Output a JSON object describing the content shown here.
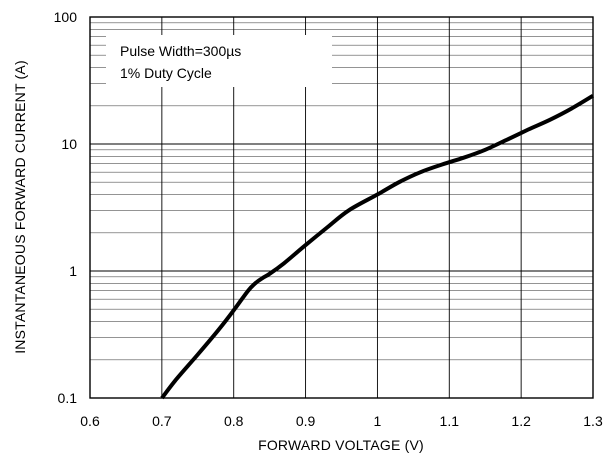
{
  "chart_data": {
    "type": "line",
    "xlabel": "FORWARD VOLTAGE (V)",
    "ylabel": "INSTANTANEOUS FORWARD CURRENT (A)",
    "xlim": [
      0.6,
      1.3
    ],
    "ylim": [
      0.1,
      100
    ],
    "yscale": "log",
    "grid": true,
    "x_ticks": [
      "0.6",
      "0.7",
      "0.8",
      "0.9",
      "1",
      "1.1",
      "1.2",
      "1.3"
    ],
    "y_ticks": [
      "0.1",
      "1",
      "10",
      "100"
    ],
    "annotations": [
      "Pulse Width=300µs",
      "1% Duty Cycle"
    ],
    "series": [
      {
        "color": "#000000",
        "x": [
          0.7,
          0.72,
          0.75,
          0.78,
          0.8,
          0.82,
          0.83,
          0.84,
          0.85,
          0.87,
          0.9,
          0.93,
          0.96,
          1.0,
          1.03,
          1.06,
          1.09,
          1.12,
          1.15,
          1.18,
          1.21,
          1.24,
          1.27,
          1.3
        ],
        "y": [
          0.1,
          0.14,
          0.22,
          0.35,
          0.49,
          0.7,
          0.8,
          0.88,
          0.95,
          1.15,
          1.6,
          2.2,
          3.0,
          4.0,
          5.0,
          6.0,
          6.9,
          7.8,
          9.0,
          10.8,
          13.0,
          15.5,
          19.0,
          24.0
        ]
      }
    ]
  }
}
